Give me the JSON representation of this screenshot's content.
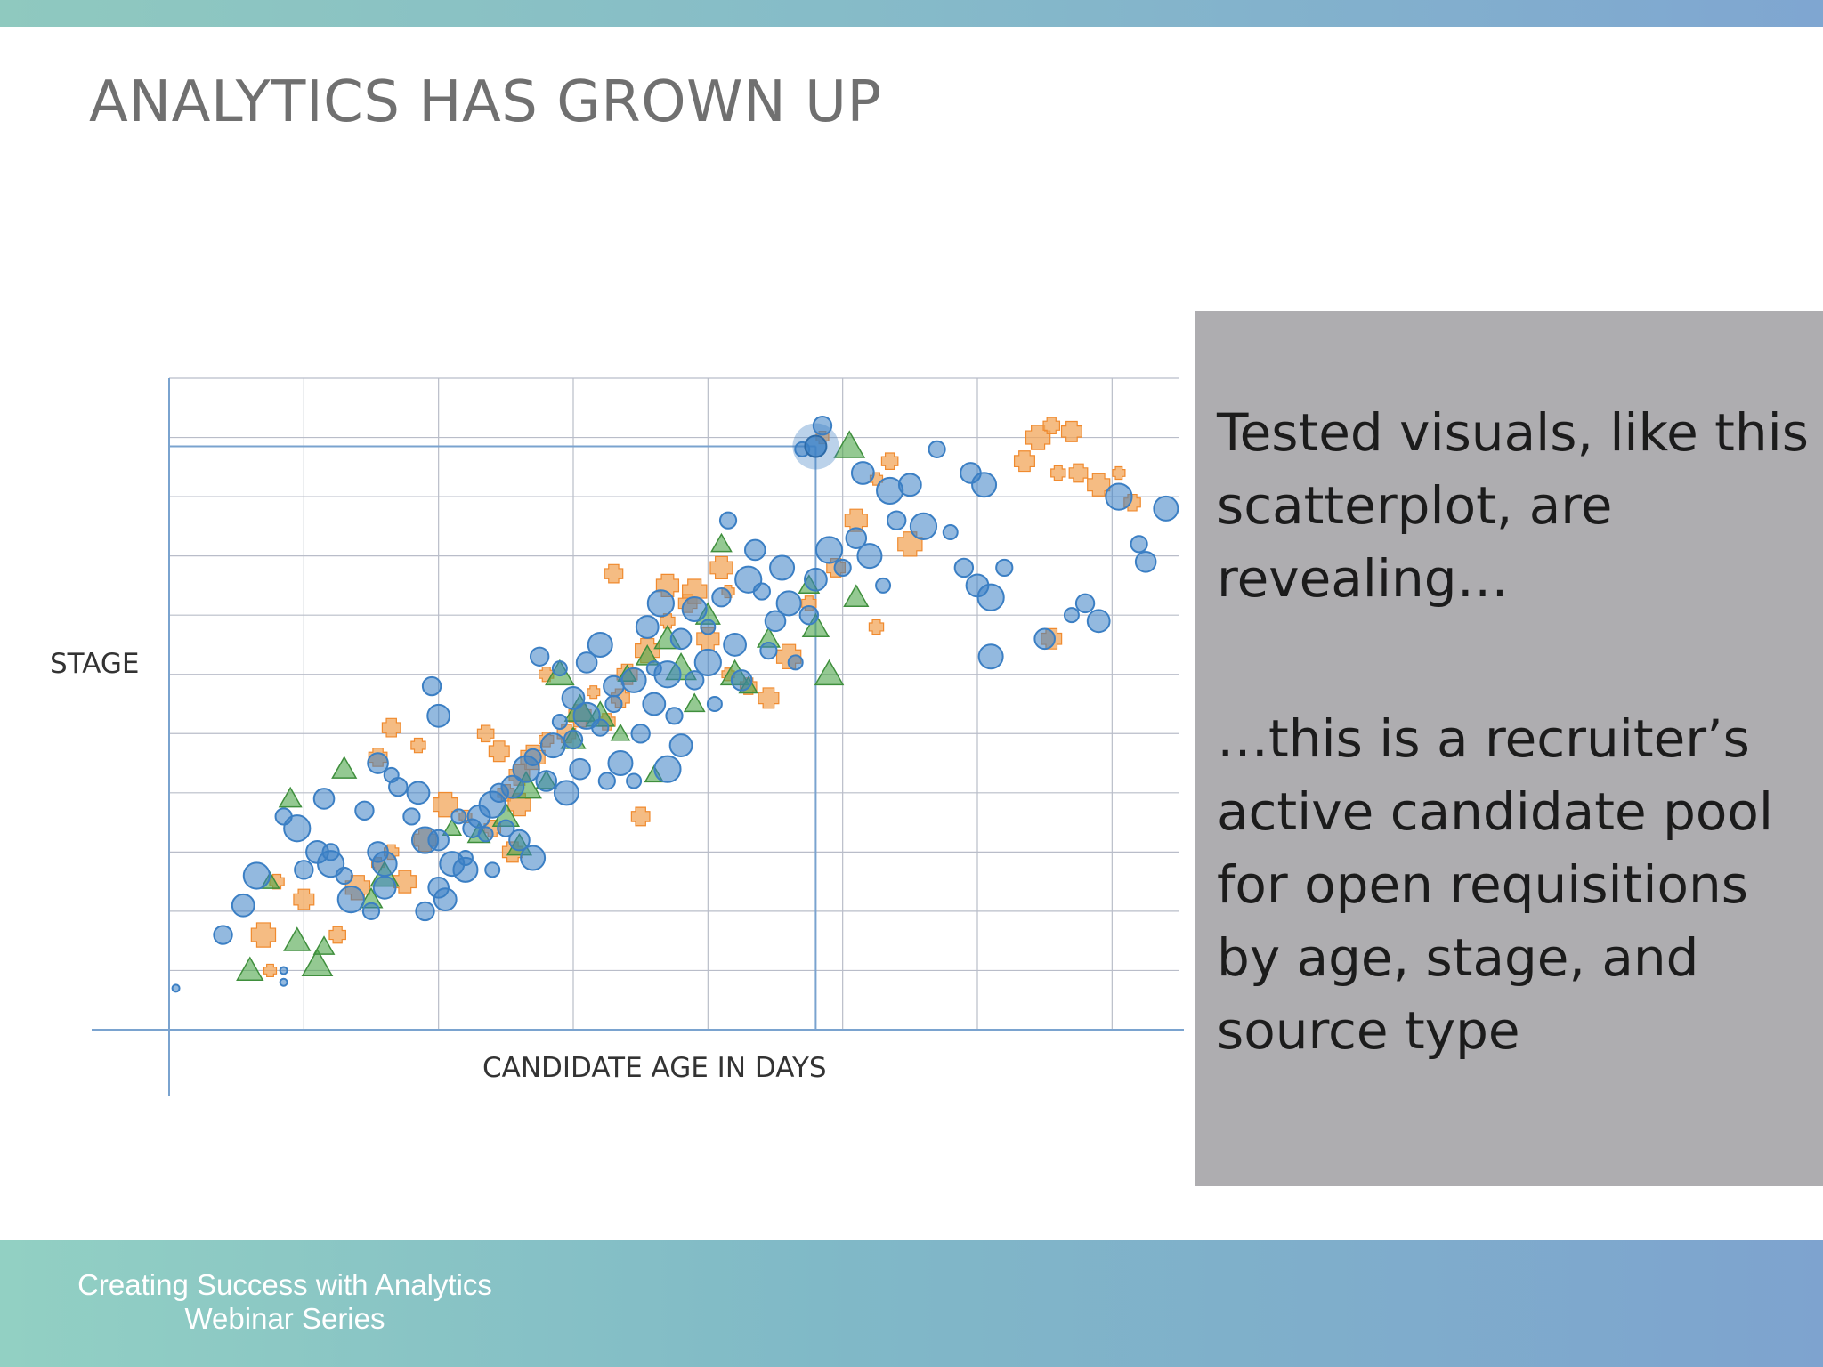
{
  "slide": {
    "title": "ANALYTICS HAS GROWN UP",
    "footer_line1": "Creating Success with Analytics",
    "footer_line2": "Webinar Series"
  },
  "callout": {
    "paragraph1": "Tested visuals, like this scatterplot, are revealing…",
    "paragraph2": "…this is a recruiter’s active candidate pool for open requisitions by age, stage, and source type"
  },
  "chart_data": {
    "type": "scatter",
    "title": "",
    "xlabel": "CANDIDATE AGE IN DAYS",
    "ylabel": "STAGE",
    "xlim": [
      0,
      7.5
    ],
    "ylim": [
      0,
      11
    ],
    "grid": true,
    "tick_labels_shown": false,
    "highlight_point": {
      "x": 4.8,
      "y": 9.85
    },
    "series": [
      {
        "marker": "circle",
        "color": "#3b7fc4",
        "points": [
          [
            0.05,
            0.7
          ],
          [
            0.4,
            1.6
          ],
          [
            0.55,
            2.1
          ],
          [
            0.65,
            2.6
          ],
          [
            0.85,
            3.6
          ],
          [
            1.15,
            3.9
          ],
          [
            0.85,
            1.0
          ],
          [
            0.85,
            0.8
          ],
          [
            1.0,
            2.7
          ],
          [
            1.1,
            3.0
          ],
          [
            1.2,
            2.8
          ],
          [
            1.3,
            2.6
          ],
          [
            1.55,
            3.0
          ],
          [
            1.6,
            2.8
          ],
          [
            1.65,
            4.3
          ],
          [
            1.7,
            4.1
          ],
          [
            1.85,
            4.0
          ],
          [
            1.9,
            3.2
          ],
          [
            1.8,
            3.6
          ],
          [
            2.0,
            3.2
          ],
          [
            2.1,
            2.8
          ],
          [
            2.2,
            2.9
          ],
          [
            2.25,
            3.4
          ],
          [
            2.3,
            3.6
          ],
          [
            2.4,
            3.8
          ],
          [
            2.5,
            3.4
          ],
          [
            2.6,
            3.2
          ],
          [
            2.7,
            2.9
          ],
          [
            2.35,
            3.3
          ],
          [
            2.45,
            4.0
          ],
          [
            2.55,
            4.1
          ],
          [
            2.65,
            4.4
          ],
          [
            2.7,
            4.6
          ],
          [
            2.8,
            4.2
          ],
          [
            2.85,
            4.8
          ],
          [
            2.9,
            5.2
          ],
          [
            3.0,
            4.9
          ],
          [
            3.0,
            5.6
          ],
          [
            3.1,
            5.3
          ],
          [
            3.2,
            5.1
          ],
          [
            3.3,
            5.8
          ],
          [
            3.35,
            4.5
          ],
          [
            3.45,
            4.2
          ],
          [
            3.5,
            5.0
          ],
          [
            3.6,
            5.5
          ],
          [
            3.7,
            6.0
          ],
          [
            3.75,
            5.3
          ],
          [
            3.8,
            6.6
          ],
          [
            3.9,
            7.1
          ],
          [
            4.0,
            6.8
          ],
          [
            4.1,
            7.3
          ],
          [
            4.2,
            6.5
          ],
          [
            4.3,
            7.6
          ],
          [
            4.4,
            7.4
          ],
          [
            4.5,
            6.9
          ],
          [
            4.6,
            7.2
          ],
          [
            4.65,
            6.2
          ],
          [
            4.75,
            7.0
          ],
          [
            4.8,
            7.6
          ],
          [
            4.9,
            8.1
          ],
          [
            5.0,
            7.8
          ],
          [
            5.1,
            8.3
          ],
          [
            5.2,
            8.0
          ],
          [
            5.3,
            7.5
          ],
          [
            5.4,
            8.6
          ],
          [
            5.5,
            9.2
          ],
          [
            5.6,
            8.5
          ],
          [
            5.7,
            9.8
          ],
          [
            5.95,
            9.4
          ],
          [
            6.05,
            9.2
          ],
          [
            5.8,
            8.4
          ],
          [
            5.9,
            7.8
          ],
          [
            6.0,
            7.5
          ],
          [
            6.1,
            7.3
          ],
          [
            6.2,
            7.8
          ],
          [
            6.5,
            6.6
          ],
          [
            6.1,
            6.3
          ],
          [
            6.7,
            7.0
          ],
          [
            6.8,
            7.2
          ],
          [
            6.9,
            6.9
          ],
          [
            7.05,
            9.0
          ],
          [
            7.2,
            8.2
          ],
          [
            7.25,
            7.9
          ],
          [
            7.4,
            8.8
          ],
          [
            4.7,
            9.8
          ],
          [
            4.85,
            10.2
          ],
          [
            5.15,
            9.4
          ],
          [
            5.35,
            9.1
          ],
          [
            3.3,
            5.5
          ],
          [
            3.1,
            6.2
          ],
          [
            3.2,
            6.5
          ],
          [
            2.9,
            6.1
          ],
          [
            2.75,
            6.3
          ],
          [
            3.55,
            6.8
          ],
          [
            3.65,
            7.2
          ],
          [
            4.15,
            8.6
          ],
          [
            4.35,
            8.1
          ],
          [
            4.55,
            7.8
          ],
          [
            4.05,
            5.5
          ],
          [
            3.9,
            5.9
          ],
          [
            3.8,
            4.8
          ],
          [
            3.7,
            4.4
          ],
          [
            3.25,
            4.2
          ],
          [
            3.05,
            4.4
          ],
          [
            2.95,
            4.0
          ],
          [
            2.15,
            3.6
          ],
          [
            1.45,
            3.7
          ],
          [
            1.6,
            2.4
          ],
          [
            1.35,
            2.2
          ],
          [
            1.5,
            2.0
          ],
          [
            2.0,
            2.4
          ],
          [
            2.2,
            2.7
          ],
          [
            2.4,
            2.7
          ],
          [
            1.9,
            2.0
          ],
          [
            2.05,
            2.2
          ],
          [
            4.0,
            6.2
          ],
          [
            4.45,
            6.4
          ],
          [
            4.25,
            5.9
          ],
          [
            3.45,
            5.9
          ],
          [
            3.6,
            6.1
          ],
          [
            1.95,
            5.8
          ],
          [
            2.0,
            5.3
          ],
          [
            0.95,
            3.4
          ],
          [
            1.2,
            3.0
          ],
          [
            1.55,
            4.5
          ]
        ]
      },
      {
        "marker": "plus",
        "color": "#f2a55a",
        "points": [
          [
            0.75,
            1.0
          ],
          [
            1.25,
            1.6
          ],
          [
            1.0,
            2.2
          ],
          [
            1.4,
            2.4
          ],
          [
            1.65,
            3.0
          ],
          [
            1.55,
            4.6
          ],
          [
            1.9,
            3.2
          ],
          [
            2.2,
            3.6
          ],
          [
            2.5,
            4.0
          ],
          [
            2.6,
            4.3
          ],
          [
            2.7,
            4.6
          ],
          [
            2.8,
            4.9
          ],
          [
            2.95,
            5.0
          ],
          [
            3.05,
            5.3
          ],
          [
            3.15,
            5.7
          ],
          [
            3.25,
            5.2
          ],
          [
            3.4,
            6.0
          ],
          [
            3.55,
            6.4
          ],
          [
            3.7,
            6.9
          ],
          [
            3.85,
            7.2
          ],
          [
            4.0,
            6.6
          ],
          [
            4.15,
            6.0
          ],
          [
            4.3,
            5.8
          ],
          [
            4.45,
            5.6
          ],
          [
            4.6,
            6.3
          ],
          [
            4.75,
            7.2
          ],
          [
            4.95,
            7.8
          ],
          [
            5.1,
            8.6
          ],
          [
            5.25,
            9.3
          ],
          [
            5.35,
            9.6
          ],
          [
            6.35,
            9.6
          ],
          [
            6.45,
            10.0
          ],
          [
            6.6,
            9.4
          ],
          [
            6.75,
            9.4
          ],
          [
            6.9,
            9.2
          ],
          [
            7.05,
            9.4
          ],
          [
            7.15,
            8.9
          ],
          [
            6.55,
            6.6
          ],
          [
            5.5,
            8.2
          ],
          [
            5.25,
            6.8
          ],
          [
            3.3,
            7.7
          ],
          [
            3.7,
            7.5
          ],
          [
            4.15,
            7.4
          ],
          [
            2.35,
            5.0
          ],
          [
            2.45,
            4.7
          ],
          [
            2.05,
            3.8
          ],
          [
            1.85,
            4.8
          ],
          [
            1.65,
            5.1
          ],
          [
            1.75,
            2.5
          ],
          [
            1.55,
            2.8
          ],
          [
            2.4,
            3.4
          ],
          [
            2.55,
            3.0
          ],
          [
            0.7,
            1.6
          ],
          [
            0.8,
            2.5
          ],
          [
            3.5,
            3.6
          ],
          [
            2.6,
            3.8
          ],
          [
            4.85,
            10.0
          ],
          [
            6.55,
            10.2
          ],
          [
            6.7,
            10.1
          ],
          [
            3.9,
            7.4
          ],
          [
            2.8,
            6.0
          ],
          [
            3.35,
            5.6
          ],
          [
            4.1,
            7.8
          ]
        ]
      },
      {
        "marker": "triangle",
        "color": "#4ca54a",
        "points": [
          [
            0.75,
            2.5
          ],
          [
            0.9,
            3.9
          ],
          [
            0.95,
            1.5
          ],
          [
            1.1,
            1.1
          ],
          [
            1.15,
            1.4
          ],
          [
            1.3,
            4.4
          ],
          [
            1.6,
            2.6
          ],
          [
            2.1,
            3.4
          ],
          [
            2.3,
            3.3
          ],
          [
            2.5,
            3.6
          ],
          [
            2.65,
            4.1
          ],
          [
            2.8,
            4.2
          ],
          [
            3.0,
            4.9
          ],
          [
            3.2,
            5.3
          ],
          [
            3.4,
            6.0
          ],
          [
            3.55,
            6.3
          ],
          [
            3.7,
            6.6
          ],
          [
            3.8,
            6.1
          ],
          [
            3.9,
            5.5
          ],
          [
            4.0,
            7.0
          ],
          [
            4.2,
            6.0
          ],
          [
            4.3,
            5.8
          ],
          [
            4.45,
            6.6
          ],
          [
            4.8,
            6.8
          ],
          [
            5.05,
            9.85
          ],
          [
            4.75,
            7.5
          ],
          [
            2.6,
            3.1
          ],
          [
            2.9,
            6.0
          ],
          [
            3.6,
            4.3
          ],
          [
            1.5,
            2.2
          ],
          [
            0.6,
            1.0
          ],
          [
            3.05,
            5.4
          ],
          [
            4.1,
            8.2
          ],
          [
            5.1,
            7.3
          ],
          [
            4.9,
            6.0
          ],
          [
            3.35,
            5.0
          ]
        ]
      }
    ]
  }
}
